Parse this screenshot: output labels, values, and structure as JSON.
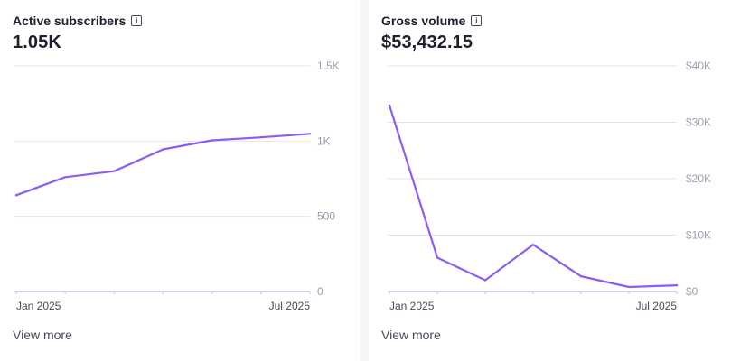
{
  "cards": [
    {
      "title": "Active subscribers",
      "value": "1.05K",
      "view_more": "View more"
    },
    {
      "title": "Gross volume",
      "value": "$53,432.15",
      "view_more": "View more"
    }
  ],
  "info_icon": "info-icon",
  "colors": {
    "line": "#8b5cf6",
    "grid": "#e3e4ea",
    "tick_text": "#9a9fb0",
    "baseline": "#c9c2e6"
  },
  "chart_data": [
    {
      "type": "line",
      "title": "Active subscribers",
      "x_tick_labels": [
        "Jan 2025",
        "Jul 2025"
      ],
      "values": [
        640,
        760,
        800,
        945,
        1005,
        1025,
        1048
      ],
      "y_ticks": [
        0,
        500,
        1000,
        1500
      ],
      "y_tick_labels": [
        "0",
        "500",
        "1K",
        "1.5K"
      ],
      "ylim": [
        0,
        1500
      ],
      "grid": true
    },
    {
      "type": "line",
      "title": "Gross volume",
      "x_tick_labels": [
        "Jan 2025",
        "Jul 2025"
      ],
      "values": [
        33000,
        6000,
        2000,
        8300,
        2700,
        800,
        1100
      ],
      "y_ticks": [
        0,
        10000,
        20000,
        30000,
        40000
      ],
      "y_tick_labels": [
        "$0",
        "$10K",
        "$20K",
        "$30K",
        "$40K"
      ],
      "ylim": [
        0,
        40000
      ],
      "grid": true
    }
  ]
}
